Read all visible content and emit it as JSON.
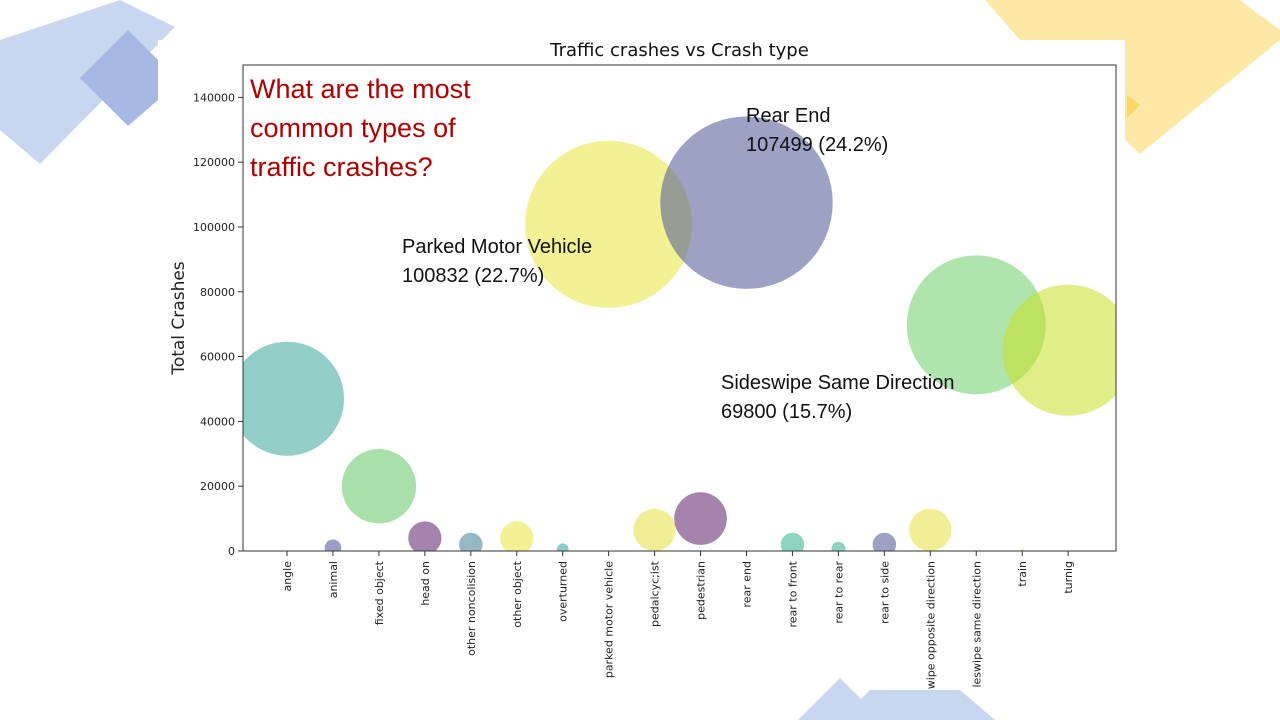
{
  "slide": {
    "question": "What are the most\ncommon types of\ntraffic crashes?",
    "annotations": [
      {
        "text": "Rear End\n107499 (24.2%)"
      },
      {
        "text": "Parked Motor Vehicle\n100832 (22.7%)"
      },
      {
        "text": "Sideswipe Same Direction\n69800 (15.7%)"
      }
    ],
    "colors": {
      "deco_blue": "#8fa8dc",
      "deco_yellow": "#ffd966",
      "question_red": "#b00000"
    }
  },
  "chart_data": {
    "type": "scatter",
    "title": "Traffic crashes vs Crash type",
    "xlabel": "",
    "ylabel": "Total Crashes",
    "ylim": [
      0,
      150000
    ],
    "yticks": [
      0,
      20000,
      40000,
      60000,
      80000,
      100000,
      120000,
      140000
    ],
    "grid": false,
    "categories": [
      "angle",
      "animal",
      "fixed object",
      "head on",
      "other noncolision",
      "other object",
      "overturned",
      "parked motor vehicle",
      "pedalcyc;ist",
      "pedestrian",
      "rear end",
      "rear to front",
      "rear to rear",
      "rear to side",
      "wipe opposite direction",
      "leswipe same direction",
      "train",
      "turnig"
    ],
    "values": [
      47000,
      1000,
      20000,
      4000,
      2000,
      4000,
      500,
      100832,
      6500,
      10000,
      107499,
      2000,
      700,
      2000,
      6500,
      69800,
      60,
      62000
    ],
    "colors": [
      "#3aa59a",
      "#4b4c9a",
      "#62c764",
      "#5b1d68",
      "#3f7d98",
      "#e8e63c",
      "#2ea4a0",
      "#e8e63c",
      "#e3e23e",
      "#5b1d68",
      "#4c5596",
      "#2eb58a",
      "#2eb58a",
      "#4c5596",
      "#e3e23e",
      "#6dd068",
      "#e3e23e",
      "#c8de24"
    ]
  }
}
